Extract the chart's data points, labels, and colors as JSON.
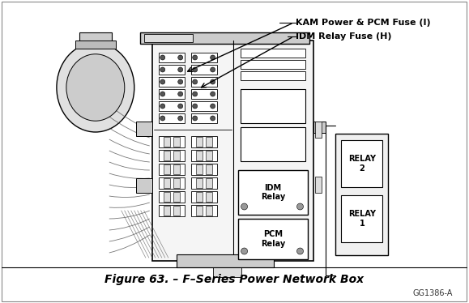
{
  "bg_color": "#ffffff",
  "title": "Figure 63. – F–Series Power Network Box",
  "title_fontsize": 10,
  "watermark": "GG1386-A",
  "label1": "KAM Power & PCM Fuse (I)",
  "label2": "IDM Relay Fuse (H)",
  "label_idm_relay": "IDM\nRelay",
  "label_pcm_relay": "PCM\nRelay",
  "label_relay2": "RELAY\n2",
  "label_relay1": "RELAY\n1",
  "lc": "#000000",
  "fc_white": "#ffffff",
  "fc_light": "#e8e8e8",
  "fc_mid": "#cccccc",
  "fc_dark": "#888888"
}
